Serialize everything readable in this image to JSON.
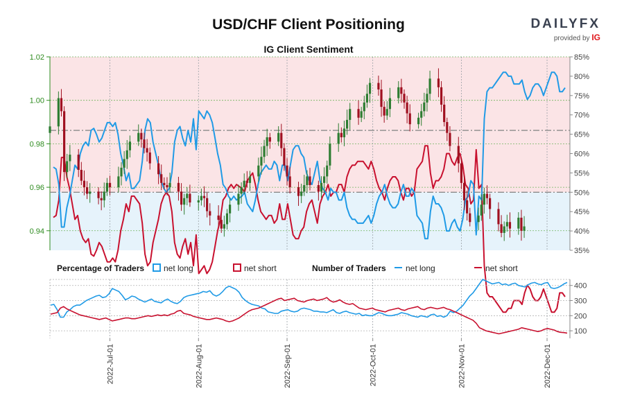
{
  "header": {
    "title": "USD/CHF Client Positioning",
    "subtitle": "IG Client Sentiment",
    "brand": "DAILYFX",
    "brand_sub": "provided by",
    "brand_sub_ig": "IG"
  },
  "legend": {
    "percentage_heading": "Percentage of Traders",
    "number_heading": "Number of Traders",
    "net_long": "net long",
    "net_short": "net short"
  },
  "colors": {
    "long": "#1f9ae6",
    "short": "#c8102e",
    "bull": "#2e7d32",
    "bear": "#a01020",
    "price_axis": "#2e8b1f",
    "long_fill": "#e6f3fb",
    "short_fill": "#fbe4e6"
  },
  "chart_data": [
    {
      "type": "candlestick",
      "name": "USD/CHF price with net-long percentage",
      "y_left_ticks": [
        "1.02",
        "1.00",
        "0.98",
        "0.96",
        "0.94"
      ],
      "y_left_values": [
        1.02,
        1.0,
        0.98,
        0.96,
        0.94
      ],
      "ylim_left": [
        0.931,
        1.02
      ],
      "y_right_ticks": [
        "85%",
        "80%",
        "75%",
        "70%",
        "65%",
        "60%",
        "55%",
        "50%",
        "45%",
        "40%",
        "35%"
      ],
      "y_right_values": [
        85,
        80,
        75,
        70,
        65,
        60,
        55,
        50,
        45,
        40,
        35
      ],
      "ylim_right": [
        35,
        85
      ],
      "reference_lines_pct": [
        50,
        66
      ],
      "candle_start_date": "2022-06-10",
      "candle_closes": [
        0.988,
        1.001,
        0.995,
        0.967,
        0.972,
        0.975,
        0.968,
        0.963,
        0.96,
        0.957,
        0.958,
        0.955,
        0.954,
        0.958,
        0.962,
        0.96,
        0.965,
        0.969,
        0.973,
        0.977,
        0.981,
        0.985,
        0.982,
        0.978,
        0.976,
        0.971,
        0.966,
        0.962,
        0.961,
        0.96,
        0.962,
        0.958,
        0.952,
        0.955,
        0.957,
        0.953,
        0.954,
        0.956,
        0.955,
        0.949,
        0.947,
        0.945,
        0.941,
        0.943,
        0.948,
        0.952,
        0.957,
        0.96,
        0.963,
        0.962,
        0.965,
        0.97,
        0.974,
        0.979,
        0.983,
        0.981,
        0.985,
        0.978,
        0.97,
        0.965,
        0.96,
        0.956,
        0.958,
        0.961,
        0.965,
        0.961,
        0.958,
        0.962,
        0.965,
        0.97,
        0.98,
        0.985,
        0.983,
        0.987,
        0.991,
        0.996,
        0.992,
        0.995,
        0.999,
        1.003,
        1.008,
        1.005,
        0.997,
        0.993,
        0.996,
        1.001,
        1.006,
        1.003,
        0.999,
        0.994,
        0.989,
        0.992,
        0.995,
        0.999,
        1.003,
        1.01,
        1.006,
        0.998,
        0.99,
        0.985,
        0.979,
        0.971,
        0.962,
        0.954,
        0.948,
        0.944,
        0.947,
        0.952,
        0.957,
        0.955,
        0.95,
        0.943,
        0.939,
        0.942,
        0.944,
        0.941,
        0.946,
        0.94,
        0.942
      ],
      "x_ticks": [
        "2022-Jul-01",
        "2022-Aug-01",
        "2022-Sep-01",
        "2022-Oct-01",
        "2022-Nov-01",
        "2022-Dec-01"
      ],
      "net_long_pct": [
        56.5,
        56,
        52,
        41,
        41,
        46,
        49,
        53,
        57,
        56,
        60,
        62,
        63,
        62,
        66,
        66.5,
        65,
        63,
        64,
        66,
        68,
        68,
        67,
        68,
        65,
        60,
        57,
        53,
        55,
        51,
        51,
        52,
        53,
        58,
        66,
        69,
        68,
        63,
        60,
        57,
        53,
        51,
        50,
        51,
        55,
        63,
        66,
        67,
        64,
        62,
        66,
        63,
        69,
        61,
        71,
        70,
        69,
        71,
        70,
        68,
        64,
        60,
        57,
        52,
        51,
        49,
        48,
        49,
        48,
        48.5,
        49,
        50,
        47,
        46,
        45,
        48,
        52,
        55,
        56,
        57,
        56,
        56,
        58,
        57,
        53,
        57,
        57,
        53,
        57,
        61,
        62,
        62,
        60,
        59,
        55,
        53,
        52,
        55,
        58,
        53,
        51,
        50,
        48,
        51,
        50,
        50,
        48,
        48,
        50,
        46,
        44,
        43,
        43,
        42,
        42,
        42,
        43,
        44,
        42,
        44,
        47,
        49,
        50,
        52,
        49,
        47,
        46,
        46,
        47,
        50,
        52,
        49,
        49,
        51,
        50,
        44,
        43,
        42,
        38,
        38,
        45,
        49,
        47,
        47,
        46,
        44,
        40,
        40,
        42,
        43,
        41,
        40,
        43,
        48,
        49,
        53,
        52,
        39,
        49,
        48,
        69,
        76,
        77,
        77,
        78,
        79,
        80,
        81,
        81,
        80,
        80,
        78,
        78,
        78,
        79,
        76,
        74,
        75,
        77,
        78,
        78,
        77,
        75,
        77,
        79,
        81,
        81,
        80,
        76,
        76,
        77
      ]
    },
    {
      "type": "line",
      "name": "Number of Traders",
      "y_ticks": [
        "400",
        "300",
        "200",
        "100"
      ],
      "y_values": [
        400,
        300,
        200,
        100
      ],
      "ylim": [
        50,
        440
      ],
      "series": [
        {
          "name": "net long",
          "values": [
            270,
            275,
            240,
            190,
            190,
            225,
            240,
            260,
            270,
            270,
            285,
            300,
            310,
            320,
            330,
            335,
            320,
            325,
            345,
            380,
            370,
            360,
            335,
            305,
            315,
            330,
            325,
            310,
            300,
            290,
            300,
            310,
            295,
            290,
            285,
            300,
            310,
            295,
            285,
            280,
            295,
            320,
            330,
            335,
            340,
            345,
            350,
            360,
            355,
            365,
            340,
            330,
            340,
            360,
            385,
            395,
            385,
            375,
            355,
            320,
            300,
            285,
            275,
            270,
            265,
            250,
            245,
            225,
            220,
            215,
            215,
            230,
            235,
            240,
            230,
            225,
            230,
            245,
            250,
            245,
            240,
            230,
            230,
            225,
            225,
            220,
            230,
            240,
            220,
            215,
            225,
            230,
            220,
            215,
            210,
            215,
            200,
            205,
            200,
            200,
            210,
            220,
            215,
            205,
            200,
            200,
            205,
            210,
            220,
            215,
            210,
            200,
            195,
            190,
            200,
            195,
            190,
            205,
            210,
            195,
            200,
            190,
            200,
            230,
            220,
            230,
            250,
            270,
            300,
            330,
            350,
            380,
            410,
            440,
            430,
            420,
            410,
            415,
            420,
            405,
            410,
            400,
            410,
            415,
            400,
            395,
            390,
            405,
            415,
            420,
            410,
            405,
            415,
            420,
            385,
            380,
            385,
            395,
            410,
            420
          ]
        },
        {
          "name": "net short",
          "values": [
            210,
            215,
            220,
            250,
            260,
            245,
            235,
            225,
            215,
            205,
            200,
            195,
            190,
            185,
            180,
            175,
            180,
            185,
            175,
            165,
            170,
            175,
            180,
            185,
            185,
            180,
            180,
            185,
            190,
            195,
            200,
            195,
            200,
            205,
            200,
            205,
            200,
            210,
            215,
            230,
            235,
            215,
            210,
            205,
            195,
            190,
            185,
            180,
            175,
            175,
            180,
            185,
            180,
            175,
            165,
            160,
            165,
            175,
            185,
            200,
            215,
            230,
            240,
            245,
            250,
            260,
            270,
            280,
            290,
            300,
            310,
            315,
            300,
            305,
            310,
            315,
            300,
            295,
            290,
            300,
            305,
            310,
            300,
            305,
            310,
            320,
            300,
            290,
            295,
            305,
            290,
            280,
            275,
            280,
            265,
            250,
            245,
            240,
            245,
            250,
            240,
            235,
            230,
            225,
            235,
            240,
            245,
            250,
            240,
            235,
            245,
            250,
            255,
            260,
            245,
            240,
            250,
            255,
            250,
            245,
            250,
            255,
            245,
            240,
            230,
            220,
            210,
            200,
            190,
            180,
            170,
            150,
            120,
            110,
            100,
            95,
            90,
            85,
            80,
            85,
            90,
            95,
            100,
            105,
            110,
            120,
            115,
            110,
            105,
            100,
            95,
            100,
            110,
            115,
            110,
            105,
            95,
            90,
            88,
            85
          ]
        }
      ]
    }
  ]
}
